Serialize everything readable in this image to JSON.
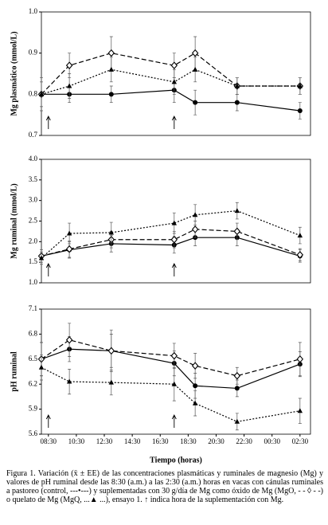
{
  "chart_data": [
    {
      "type": "line",
      "ylabel": "Mg plasmático (mmol/L)",
      "x": [
        8,
        10,
        13,
        17.5,
        19,
        22,
        26.5
      ],
      "xlim": [
        8,
        27.25
      ],
      "ylim": [
        0.7,
        1.0
      ],
      "yticks": [
        0.7,
        0.8,
        0.9,
        {
          "value": 1.0,
          "label": "1.0"
        }
      ],
      "arrows": [
        8.5,
        17.5
      ],
      "series": [
        {
          "color": "#000000",
          "marker": "circle",
          "dash": "solid",
          "values": [
            0.8,
            0.8,
            0.8,
            0.81,
            0.78,
            0.78,
            0.76
          ],
          "errors": [
            0.03,
            0.02,
            0.02,
            0.03,
            0.03,
            0.02,
            0.02
          ]
        },
        {
          "color": "#000000",
          "marker": "diamond",
          "dash": "dashed",
          "values": [
            0.8,
            0.87,
            0.9,
            0.87,
            0.9,
            0.82,
            0.82
          ],
          "errors": [
            0.04,
            0.03,
            0.04,
            0.03,
            0.04,
            0.02,
            0.02
          ]
        },
        {
          "color": "#000000",
          "marker": "triangle",
          "dash": "dotted",
          "values": [
            0.8,
            0.82,
            0.86,
            0.83,
            0.86,
            0.82,
            0.82
          ],
          "errors": [
            0.03,
            0.03,
            0.03,
            0.03,
            0.03,
            0.02,
            0.02
          ]
        }
      ]
    },
    {
      "type": "line",
      "ylabel": "Mg ruminal (mmol/L)",
      "x": [
        8,
        10,
        13,
        17.5,
        19,
        22,
        26.5
      ],
      "xlim": [
        8,
        27.25
      ],
      "ylim": [
        1.0,
        4.0
      ],
      "yticks": [
        {
          "value": 1.0,
          "label": "1.0"
        },
        1.5,
        {
          "value": 2.0,
          "label": "2.0"
        },
        2.5,
        {
          "value": 3.0,
          "label": "3.0"
        },
        3.5,
        {
          "value": 4.0,
          "label": "4.0"
        }
      ],
      "arrows": [
        8.5,
        17.5
      ],
      "series": [
        {
          "color": "#000000",
          "marker": "circle",
          "dash": "solid",
          "values": [
            1.65,
            1.8,
            1.95,
            1.92,
            2.1,
            2.1,
            1.65
          ],
          "errors": [
            0.15,
            0.2,
            0.2,
            0.2,
            0.2,
            0.2,
            0.15
          ]
        },
        {
          "color": "#000000",
          "marker": "diamond",
          "dash": "dashed",
          "values": [
            1.65,
            1.82,
            2.05,
            2.05,
            2.3,
            2.25,
            1.68
          ],
          "errors": [
            0.15,
            0.2,
            0.2,
            0.2,
            0.2,
            0.2,
            0.15
          ]
        },
        {
          "color": "#000000",
          "marker": "triangle",
          "dash": "dotted",
          "values": [
            1.6,
            2.2,
            2.22,
            2.45,
            2.65,
            2.75,
            2.15
          ],
          "errors": [
            0.15,
            0.25,
            0.25,
            0.25,
            0.25,
            0.2,
            0.2
          ]
        }
      ]
    },
    {
      "type": "line",
      "ylabel": "pH ruminal",
      "xlabel": "Tiempo (horas)",
      "x": [
        8,
        10,
        13,
        17.5,
        19,
        22,
        26.5
      ],
      "xlim": [
        8,
        27.25
      ],
      "ylim": [
        5.6,
        7.1
      ],
      "yticks": [
        5.6,
        5.9,
        6.2,
        6.5,
        6.8,
        7.1
      ],
      "xticks": [
        {
          "value": 8.5,
          "label": "08:30"
        },
        {
          "value": 10.5,
          "label": "10:30"
        },
        {
          "value": 12.5,
          "label": "12:30"
        },
        {
          "value": 14.5,
          "label": "14:30"
        },
        {
          "value": 16.5,
          "label": "16:30"
        },
        {
          "value": 18.5,
          "label": "18:30"
        },
        {
          "value": 20.5,
          "label": "20:30"
        },
        {
          "value": 22.5,
          "label": "22:30"
        },
        {
          "value": 24.5,
          "label": "00:30"
        },
        {
          "value": 26.5,
          "label": "02:30"
        }
      ],
      "arrows": [
        8.5,
        17.5
      ],
      "series": [
        {
          "color": "#000000",
          "marker": "circle",
          "dash": "solid",
          "values": [
            6.5,
            6.62,
            6.6,
            6.45,
            6.18,
            6.15,
            6.44
          ],
          "errors": [
            0.2,
            0.15,
            0.2,
            0.15,
            0.15,
            0.1,
            0.15
          ]
        },
        {
          "color": "#000000",
          "marker": "diamond",
          "dash": "dashed",
          "values": [
            6.5,
            6.73,
            6.6,
            6.54,
            6.42,
            6.3,
            6.5
          ],
          "errors": [
            0.2,
            0.2,
            0.25,
            0.15,
            0.15,
            0.1,
            0.2
          ]
        },
        {
          "color": "#000000",
          "marker": "triangle",
          "dash": "dotted",
          "values": [
            6.4,
            6.23,
            6.22,
            6.2,
            5.97,
            5.75,
            5.88
          ],
          "errors": [
            0.15,
            0.15,
            0.15,
            0.2,
            0.15,
            0.1,
            0.15
          ]
        }
      ]
    }
  ],
  "caption": "Figura 1. Variación (x̄ ± EE) de las concentraciones plasmáticas y ruminales de magnesio (Mg) y valores de pH ruminal desde las 8:30 (a.m.) a las 2:30 (a.m.) horas en vacas con cánulas ruminales a pastoreo (control, ---•---) y suplementadas con 30 g/día de Mg como óxido de Mg (MgO, - - ◊ - -) o quelato de Mg (MgQ, ...▲ ...), ensayo 1. ↑ indica hora de la suplementación con Mg."
}
